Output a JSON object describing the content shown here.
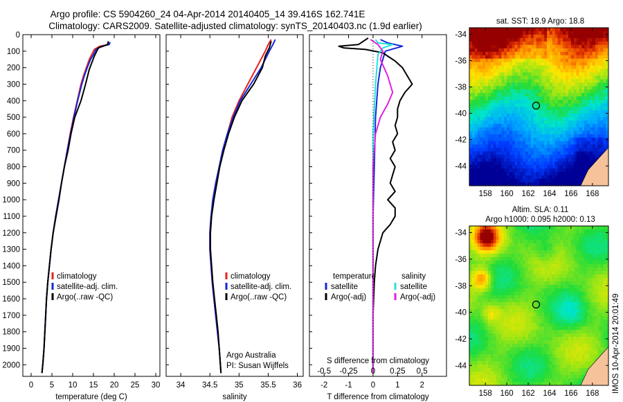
{
  "figure": {
    "title_line1": "Argo profile: CS 5904260_24 04-Apr-2014 20140405_14 39.416S 162.741E",
    "title_line2": "Climatology: CARS2009. Satellite-adjusted climatology: synTS_20140403.nc (1.9d earlier)",
    "side_stamp": "IMOS 10-Apr-2014 20:01:49",
    "credit_line1": "Argo Australia",
    "credit_line2": "PI: Susan Wijffels"
  },
  "colors": {
    "climatology": "#e8221e",
    "satellite": "#1226d8",
    "argo": "#000000",
    "satellite_salinity": "#22e0e0",
    "argo_salinity": "#e020e0",
    "land": "#f5c29a"
  },
  "chart_data": [
    {
      "type": "line",
      "name": "temperature-profile",
      "xlabel": "temperature (deg C)",
      "ylabel": "",
      "xlim": [
        -2,
        31
      ],
      "ylim": [
        2070,
        0
      ],
      "xticks": [
        0,
        5,
        10,
        15,
        20,
        25,
        30
      ],
      "yticks": [
        0,
        100,
        200,
        300,
        400,
        500,
        600,
        700,
        800,
        900,
        1000,
        1100,
        1200,
        1300,
        1400,
        1500,
        1600,
        1700,
        1800,
        1900,
        2000
      ],
      "legend": [
        "climatology",
        "satellite-adj. clim.",
        "Argo(..raw -QC)"
      ],
      "series": [
        {
          "name": "climatology",
          "color": "climatology",
          "points": [
            [
              18.8,
              50
            ],
            [
              18.5,
              60
            ],
            [
              16.5,
              70
            ],
            [
              15.2,
              90
            ],
            [
              14.6,
              120
            ],
            [
              14.0,
              150
            ],
            [
              13.3,
              200
            ],
            [
              12.6,
              250
            ],
            [
              12.0,
              300
            ],
            [
              11.1,
              400
            ],
            [
              10.2,
              500
            ],
            [
              9.4,
              600
            ],
            [
              8.7,
              700
            ],
            [
              8.0,
              800
            ],
            [
              7.3,
              900
            ],
            [
              6.6,
              1000
            ],
            [
              5.9,
              1100
            ],
            [
              5.3,
              1200
            ],
            [
              4.8,
              1300
            ],
            [
              4.4,
              1400
            ],
            [
              4.0,
              1500
            ],
            [
              3.7,
              1600
            ],
            [
              3.5,
              1700
            ],
            [
              3.3,
              1800
            ],
            [
              3.1,
              1900
            ],
            [
              2.8,
              2000
            ],
            [
              2.6,
              2050
            ]
          ]
        },
        {
          "name": "satellite-adj. clim.",
          "color": "satellite",
          "points": [
            [
              19.0,
              45
            ],
            [
              18.8,
              60
            ],
            [
              17.0,
              70
            ],
            [
              15.6,
              90
            ],
            [
              15.0,
              120
            ],
            [
              14.3,
              150
            ],
            [
              13.5,
              200
            ],
            [
              12.8,
              250
            ],
            [
              12.2,
              300
            ],
            [
              11.2,
              400
            ],
            [
              10.3,
              500
            ],
            [
              9.5,
              600
            ],
            [
              8.7,
              700
            ],
            [
              8.0,
              800
            ],
            [
              7.3,
              900
            ],
            [
              6.6,
              1000
            ],
            [
              5.9,
              1100
            ],
            [
              5.3,
              1200
            ],
            [
              4.8,
              1300
            ],
            [
              4.4,
              1400
            ],
            [
              4.0,
              1500
            ],
            [
              3.7,
              1600
            ],
            [
              3.5,
              1700
            ],
            [
              3.3,
              1800
            ],
            [
              3.1,
              1900
            ],
            [
              2.8,
              2000
            ],
            [
              2.6,
              2050
            ]
          ]
        },
        {
          "name": "Argo(..raw -QC)",
          "color": "argo",
          "points": [
            [
              18.6,
              40
            ],
            [
              18.4,
              60
            ],
            [
              16.2,
              80
            ],
            [
              15.8,
              100
            ],
            [
              15.2,
              130
            ],
            [
              14.6,
              170
            ],
            [
              14.0,
              210
            ],
            [
              13.6,
              250
            ],
            [
              13.1,
              300
            ],
            [
              12.0,
              400
            ],
            [
              10.5,
              500
            ],
            [
              9.6,
              600
            ],
            [
              8.9,
              700
            ],
            [
              8.0,
              800
            ],
            [
              7.3,
              900
            ],
            [
              6.7,
              1000
            ],
            [
              6.0,
              1100
            ],
            [
              5.3,
              1200
            ],
            [
              4.8,
              1300
            ],
            [
              4.4,
              1400
            ],
            [
              4.0,
              1500
            ],
            [
              3.7,
              1600
            ],
            [
              3.5,
              1700
            ],
            [
              3.3,
              1800
            ],
            [
              3.1,
              1900
            ],
            [
              2.8,
              2000
            ],
            [
              2.6,
              2050
            ]
          ]
        }
      ]
    },
    {
      "type": "line",
      "name": "salinity-profile",
      "xlabel": "salinity",
      "ylabel": "",
      "xlim": [
        33.75,
        36.1
      ],
      "ylim": [
        2070,
        0
      ],
      "xticks": [
        34,
        34.5,
        35,
        35.5,
        36
      ],
      "xticklabels": [
        "34",
        "34.5",
        "35",
        "35.5",
        "36"
      ],
      "legend": [
        "climatology",
        "satellite-adj. clim.",
        "Argo(..raw -QC)"
      ],
      "series": [
        {
          "name": "climatology",
          "color": "climatology",
          "points": [
            [
              35.55,
              30
            ],
            [
              35.5,
              60
            ],
            [
              35.45,
              100
            ],
            [
              35.3,
              200
            ],
            [
              35.15,
              300
            ],
            [
              35.0,
              400
            ],
            [
              34.88,
              500
            ],
            [
              34.8,
              600
            ],
            [
              34.72,
              700
            ],
            [
              34.66,
              800
            ],
            [
              34.6,
              900
            ],
            [
              34.55,
              1000
            ],
            [
              34.52,
              1100
            ],
            [
              34.5,
              1200
            ],
            [
              34.5,
              1300
            ],
            [
              34.52,
              1400
            ],
            [
              34.54,
              1500
            ],
            [
              34.57,
              1600
            ],
            [
              34.6,
              1700
            ],
            [
              34.63,
              1800
            ],
            [
              34.66,
              1900
            ],
            [
              34.68,
              2000
            ],
            [
              34.69,
              2050
            ]
          ]
        },
        {
          "name": "satellite-adj. clim.",
          "color": "satellite",
          "points": [
            [
              35.62,
              30
            ],
            [
              35.58,
              60
            ],
            [
              35.52,
              100
            ],
            [
              35.38,
              200
            ],
            [
              35.2,
              300
            ],
            [
              35.02,
              400
            ],
            [
              34.9,
              500
            ],
            [
              34.8,
              600
            ],
            [
              34.72,
              700
            ],
            [
              34.66,
              800
            ],
            [
              34.6,
              900
            ],
            [
              34.55,
              1000
            ],
            [
              34.52,
              1100
            ],
            [
              34.5,
              1200
            ],
            [
              34.5,
              1300
            ],
            [
              34.52,
              1400
            ],
            [
              34.54,
              1500
            ],
            [
              34.57,
              1600
            ],
            [
              34.6,
              1700
            ],
            [
              34.63,
              1800
            ],
            [
              34.66,
              1900
            ],
            [
              34.68,
              2000
            ],
            [
              34.69,
              2050
            ]
          ]
        },
        {
          "name": "Argo(..raw -QC)",
          "color": "argo",
          "points": [
            [
              35.55,
              40
            ],
            [
              35.52,
              80
            ],
            [
              35.45,
              130
            ],
            [
              35.4,
              200
            ],
            [
              35.25,
              300
            ],
            [
              35.05,
              400
            ],
            [
              34.92,
              500
            ],
            [
              34.82,
              600
            ],
            [
              34.74,
              700
            ],
            [
              34.67,
              800
            ],
            [
              34.62,
              900
            ],
            [
              34.57,
              1000
            ],
            [
              34.53,
              1100
            ],
            [
              34.51,
              1200
            ],
            [
              34.51,
              1300
            ],
            [
              34.53,
              1400
            ],
            [
              34.55,
              1500
            ],
            [
              34.58,
              1600
            ],
            [
              34.61,
              1700
            ],
            [
              34.64,
              1800
            ],
            [
              34.66,
              1900
            ],
            [
              34.68,
              2000
            ],
            [
              34.69,
              2050
            ]
          ]
        }
      ]
    },
    {
      "type": "line",
      "name": "difference-profile",
      "xlabel": "T difference from climatology",
      "xlabel_top": "S difference from climatology",
      "xlim": [
        -2.6,
        3.0
      ],
      "ylim": [
        2070,
        0
      ],
      "xticks": [
        -2,
        -1,
        0,
        1,
        2
      ],
      "xticklabels": [
        "-2",
        "-1",
        "0",
        "1",
        "2"
      ],
      "xticks_top": [
        -0.5,
        -0.25,
        0,
        0.25,
        0.5
      ],
      "xticklabels_top": [
        "-0.5",
        "-0.25",
        "0",
        "0.25",
        "0.5"
      ],
      "legend_headers": [
        "temperature",
        "salinity"
      ],
      "legend": [
        "satellite",
        "Argo(-adj)",
        "satellite",
        "Argo(-adj)"
      ],
      "series": [
        {
          "name": "satellite",
          "quantity": "temperature",
          "color": "satellite",
          "points": [
            [
              0.3,
              30
            ],
            [
              0.6,
              50
            ],
            [
              1.2,
              70
            ],
            [
              0.5,
              100
            ],
            [
              0.3,
              200
            ],
            [
              0.2,
              300
            ],
            [
              0.1,
              500
            ],
            [
              0.05,
              800
            ],
            [
              0.0,
              1100
            ],
            [
              0.0,
              1500
            ],
            [
              0.0,
              2050
            ]
          ]
        },
        {
          "name": "Argo(-adj)",
          "quantity": "temperature",
          "color": "argo",
          "points": [
            [
              -0.2,
              20
            ],
            [
              -0.6,
              60
            ],
            [
              -1.4,
              70
            ],
            [
              -1.2,
              80
            ],
            [
              -0.3,
              90
            ],
            [
              0.4,
              110
            ],
            [
              0.6,
              130
            ],
            [
              0.9,
              160
            ],
            [
              1.2,
              200
            ],
            [
              1.4,
              250
            ],
            [
              1.6,
              300
            ],
            [
              1.3,
              350
            ],
            [
              1.1,
              400
            ],
            [
              1.0,
              450
            ],
            [
              1.0,
              500
            ],
            [
              0.9,
              550
            ],
            [
              1.0,
              600
            ],
            [
              0.8,
              650
            ],
            [
              0.9,
              700
            ],
            [
              0.7,
              750
            ],
            [
              0.9,
              800
            ],
            [
              0.8,
              850
            ],
            [
              0.7,
              900
            ],
            [
              0.9,
              950
            ],
            [
              0.6,
              1000
            ],
            [
              0.9,
              1050
            ],
            [
              0.9,
              1100
            ],
            [
              0.7,
              1150
            ],
            [
              0.4,
              1200
            ],
            [
              0.2,
              1300
            ],
            [
              0.1,
              1400
            ],
            [
              0.05,
              1500
            ],
            [
              0.0,
              1700
            ],
            [
              0.0,
              2050
            ]
          ]
        },
        {
          "name": "satellite",
          "quantity": "salinity",
          "color": "satellite_salinity",
          "points": [
            [
              0.1,
              30
            ],
            [
              0.2,
              50
            ],
            [
              0.8,
              60
            ],
            [
              0.4,
              80
            ],
            [
              0.2,
              120
            ],
            [
              0.1,
              300
            ],
            [
              0.0,
              600
            ],
            [
              0.0,
              1200
            ],
            [
              0.0,
              2050
            ]
          ]
        },
        {
          "name": "Argo(-adj)",
          "quantity": "salinity",
          "color": "argo_salinity",
          "points": [
            [
              -0.1,
              30
            ],
            [
              0.2,
              60
            ],
            [
              0.4,
              100
            ],
            [
              0.3,
              150
            ],
            [
              0.6,
              250
            ],
            [
              0.8,
              350
            ],
            [
              0.6,
              420
            ],
            [
              0.3,
              500
            ],
            [
              0.1,
              600
            ],
            [
              0.0,
              800
            ],
            [
              0.0,
              1100
            ],
            [
              0.0,
              2050
            ]
          ]
        }
      ]
    },
    {
      "type": "heatmap",
      "name": "sst-map",
      "title": "sat. SST: 18.9 Argo: 18.8",
      "xlim": [
        156.5,
        169.5
      ],
      "ylim": [
        -45.5,
        -33.5
      ],
      "xticks": [
        158,
        160,
        162,
        164,
        166,
        168
      ],
      "yticks": [
        -34,
        -36,
        -38,
        -40,
        -42,
        -44
      ],
      "argo_position": [
        162.741,
        -39.416
      ]
    },
    {
      "type": "heatmap",
      "name": "sla-map",
      "title_line1": "Altim. SLA: 0.11",
      "title_line2": "Argo h1000: 0.095 h2000: 0.13",
      "xlim": [
        156.5,
        169.5
      ],
      "ylim": [
        -45.5,
        -33.5
      ],
      "xticks": [
        158,
        160,
        162,
        164,
        166,
        168
      ],
      "yticks": [
        -34,
        -36,
        -38,
        -40,
        -42,
        -44
      ],
      "argo_position": [
        162.741,
        -39.416
      ]
    }
  ]
}
